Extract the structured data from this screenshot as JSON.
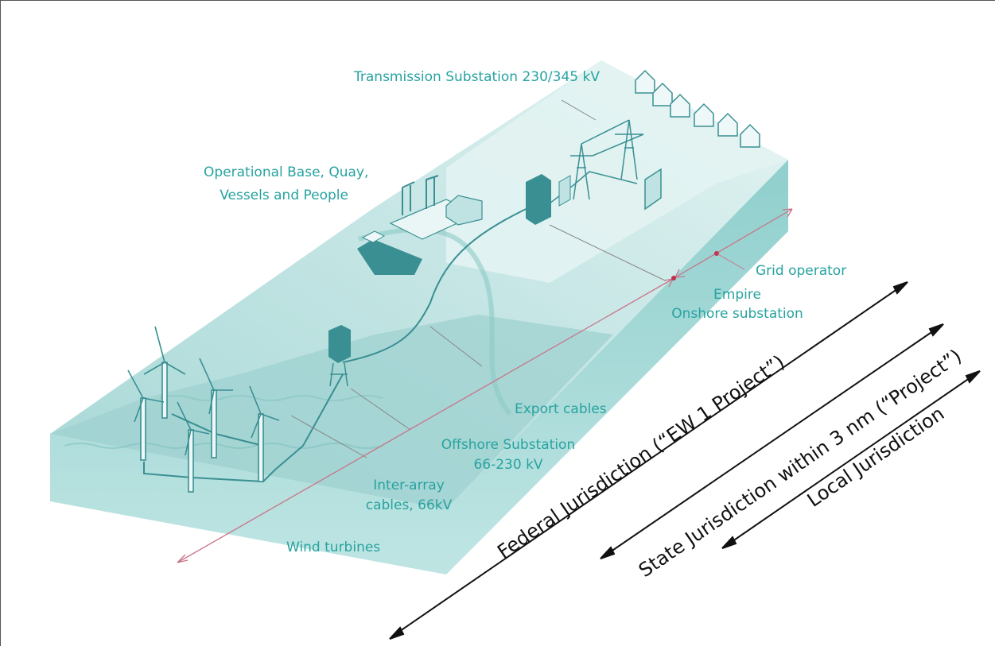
{
  "colors": {
    "label_teal": "#27a3a0",
    "water_light": "#d7efee",
    "water_mid": "#a9d8d6",
    "water_dark": "#7cc3c1",
    "equipment": "#3a8f93",
    "pink_arrow": "#c87488",
    "black_arrow": "#111111"
  },
  "labels": {
    "transmission_substation": "Transmission Substation 230/345 kV",
    "operational_base_line1": "Operational Base, Quay,",
    "operational_base_line2": "Vessels and People",
    "grid_operator": "Grid operator",
    "empire_line1": "Empire",
    "empire_line2": "Onshore substation",
    "export_cables": "Export cables",
    "offshore_substation_line1": "Offshore Substation",
    "offshore_substation_line2": "66-230 kV",
    "inter_array_line1": "Inter-array",
    "inter_array_line2": "cables, 66kV",
    "wind_turbines": "Wind turbines"
  },
  "jurisdictions": {
    "federal": "Federal Jurisdiction (“EW 1 Project”)",
    "state": "State Jurisdiction within 3 nm (“Project”)",
    "local": "Local Jurisdiction"
  }
}
